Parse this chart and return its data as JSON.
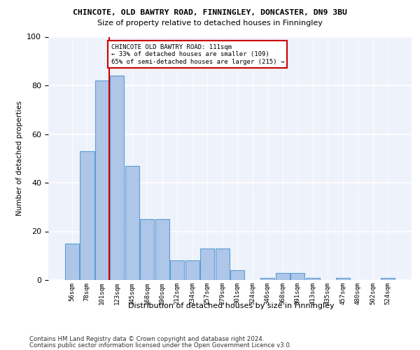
{
  "title": "CHINCOTE, OLD BAWTRY ROAD, FINNINGLEY, DONCASTER, DN9 3BU",
  "subtitle": "Size of property relative to detached houses in Finningley",
  "xlabel": "Distribution of detached houses by size in Finningley",
  "ylabel": "Number of detached properties",
  "bar_values": [
    15,
    53,
    82,
    84,
    47,
    25,
    25,
    8,
    8,
    13,
    13,
    4,
    0,
    1,
    3,
    3,
    1,
    0,
    1,
    0,
    0,
    1
  ],
  "bin_labels": [
    "56sqm",
    "78sqm",
    "101sqm",
    "123sqm",
    "145sqm",
    "168sqm",
    "190sqm",
    "212sqm",
    "234sqm",
    "257sqm",
    "279sqm",
    "301sqm",
    "324sqm",
    "346sqm",
    "368sqm",
    "391sqm",
    "413sqm",
    "435sqm",
    "457sqm",
    "480sqm",
    "502sqm",
    "524sqm"
  ],
  "bar_color": "#aec6e8",
  "bar_edge_color": "#5a9fd4",
  "background_color": "#eef2fb",
  "grid_color": "#ffffff",
  "annotation_text_line1": "CHINCOTE OLD BAWTRY ROAD: 111sqm",
  "annotation_text_line2": "← 33% of detached houses are smaller (109)",
  "annotation_text_line3": "65% of semi-detached houses are larger (215) →",
  "annotation_box_color": "#ffffff",
  "annotation_box_edge": "#cc0000",
  "vline_color": "#cc0000",
  "vline_x": 2.475,
  "ylim": [
    0,
    100
  ],
  "yticks": [
    0,
    20,
    40,
    60,
    80,
    100
  ],
  "footer1": "Contains HM Land Registry data © Crown copyright and database right 2024.",
  "footer2": "Contains public sector information licensed under the Open Government Licence v3.0."
}
